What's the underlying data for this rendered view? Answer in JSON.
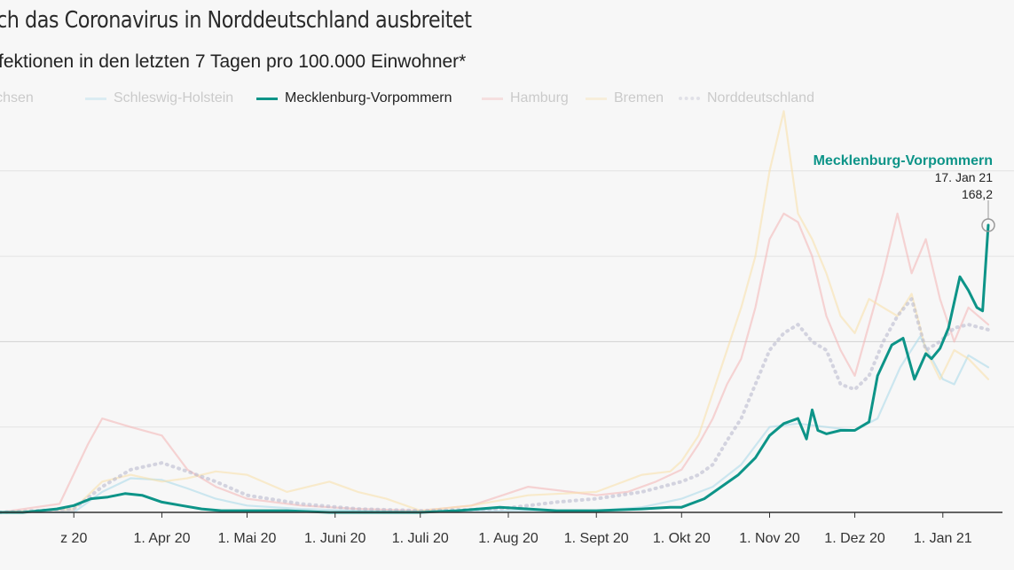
{
  "chart_data": {
    "type": "line",
    "title": "ch das Coronavirus in Norddeutschland ausbreitet",
    "subtitle": "fektionen in den letzten 7 Tagen pro 100.000 Einwohner*",
    "x_tick_labels": [
      "z 20",
      "1. Apr 20",
      "1. Mai 20",
      "1. Juni 20",
      "1. Juli 20",
      "1. Aug 20",
      "1. Sept 20",
      "1. Okt 20",
      "1. Nov 20",
      "1. Dez 20",
      "1. Jan 21"
    ],
    "x_tick_days": [
      0,
      31,
      61,
      92,
      122,
      153,
      184,
      214,
      245,
      275,
      306
    ],
    "xlim": [
      -26,
      322
    ],
    "ylim": [
      0,
      230
    ],
    "y_gridlines": [
      50,
      100,
      150,
      200
    ],
    "grid": true,
    "legend_position": "top",
    "highlight": "Mecklenburg-Vorpommern",
    "annotation": {
      "series": "Mecklenburg-Vorpommern",
      "name": "Mecklenburg-Vorpommern",
      "date": "17. Jan 21",
      "value_label": "168,2",
      "x": 322,
      "y": 168.2
    },
    "series": [
      {
        "name": "ersachsen",
        "color": "#c9c9c9",
        "style": "solid",
        "faded": true,
        "x": [
          -26,
          0
        ],
        "values": [
          0,
          1
        ]
      },
      {
        "name": "Schleswig-Holstein",
        "color": "#a8d8ea",
        "style": "solid",
        "faded": true,
        "x": [
          -26,
          0,
          10,
          20,
          31,
          40,
          50,
          61,
          80,
          100,
          122,
          150,
          170,
          184,
          200,
          214,
          225,
          235,
          245,
          255,
          265,
          275,
          283,
          291,
          298,
          306,
          310,
          315,
          322
        ],
        "values": [
          0,
          0,
          12,
          20,
          19,
          14,
          8,
          4,
          2,
          1,
          0,
          1,
          1,
          1,
          3,
          8,
          15,
          28,
          50,
          52,
          50,
          48,
          55,
          85,
          103,
          78,
          75,
          92,
          85
        ]
      },
      {
        "name": "Mecklenburg-Vorpommern",
        "color": "#0d9488",
        "style": "solid",
        "faded": false,
        "x": [
          -26,
          -18,
          -12,
          -6,
          0,
          6,
          12,
          18,
          24,
          31,
          38,
          45,
          52,
          61,
          75,
          90,
          110,
          122,
          135,
          150,
          160,
          170,
          184,
          200,
          210,
          214,
          222,
          228,
          234,
          240,
          245,
          250,
          255,
          258,
          260,
          262,
          265,
          270,
          275,
          280,
          283,
          288,
          292,
          296,
          300,
          302,
          305,
          308,
          312,
          315,
          318,
          320,
          322
        ],
        "values": [
          0,
          0,
          1,
          2,
          4,
          8,
          9,
          11,
          10,
          6,
          4,
          2,
          1,
          1,
          1,
          0,
          0,
          0,
          1,
          3,
          2,
          1,
          1,
          2,
          3,
          3,
          8,
          15,
          22,
          32,
          45,
          52,
          55,
          43,
          60,
          48,
          46,
          48,
          48,
          53,
          80,
          98,
          102,
          78,
          93,
          90,
          96,
          108,
          138,
          130,
          120,
          118,
          168.2
        ]
      },
      {
        "name": "Hamburg",
        "color": "#f4b5b5",
        "style": "solid",
        "faded": true,
        "x": [
          -26,
          -5,
          5,
          10,
          20,
          31,
          40,
          50,
          61,
          80,
          100,
          122,
          140,
          160,
          175,
          184,
          195,
          205,
          214,
          220,
          225,
          230,
          235,
          240,
          245,
          250,
          255,
          260,
          265,
          270,
          275,
          280,
          285,
          290,
          295,
          300,
          305,
          310,
          315,
          322
        ],
        "values": [
          0,
          5,
          40,
          55,
          50,
          45,
          25,
          15,
          8,
          4,
          2,
          1,
          4,
          15,
          12,
          10,
          12,
          18,
          25,
          40,
          55,
          75,
          90,
          120,
          160,
          175,
          170,
          150,
          115,
          95,
          80,
          110,
          140,
          175,
          140,
          160,
          125,
          100,
          120,
          110
        ]
      },
      {
        "name": "Bremen",
        "color": "#f9e0a8",
        "style": "solid",
        "faded": true,
        "x": [
          -26,
          0,
          5,
          10,
          20,
          31,
          40,
          50,
          61,
          75,
          90,
          100,
          110,
          122,
          140,
          160,
          184,
          200,
          210,
          214,
          220,
          225,
          230,
          235,
          240,
          245,
          250,
          255,
          260,
          265,
          270,
          275,
          280,
          285,
          290,
          295,
          300,
          305,
          310,
          315,
          322
        ],
        "values": [
          0,
          2,
          10,
          18,
          22,
          18,
          20,
          24,
          22,
          12,
          18,
          12,
          8,
          1,
          4,
          10,
          12,
          22,
          24,
          30,
          45,
          70,
          95,
          120,
          150,
          200,
          235,
          175,
          160,
          140,
          115,
          105,
          125,
          120,
          115,
          128,
          95,
          78,
          95,
          90,
          78
        ]
      },
      {
        "name": "Norddeutschland",
        "color": "#b7b7cc",
        "style": "dotted",
        "faded": true,
        "x": [
          -26,
          0,
          10,
          20,
          31,
          40,
          50,
          61,
          80,
          100,
          122,
          150,
          170,
          184,
          200,
          214,
          220,
          225,
          230,
          235,
          240,
          245,
          250,
          255,
          260,
          265,
          270,
          275,
          280,
          285,
          290,
          295,
          300,
          305,
          310,
          315,
          322
        ],
        "values": [
          0,
          2,
          15,
          25,
          29,
          24,
          18,
          10,
          5,
          2,
          1,
          2,
          6,
          8,
          12,
          18,
          22,
          28,
          42,
          55,
          75,
          95,
          105,
          110,
          100,
          95,
          75,
          72,
          80,
          100,
          115,
          125,
          95,
          100,
          108,
          110,
          107
        ]
      }
    ]
  }
}
